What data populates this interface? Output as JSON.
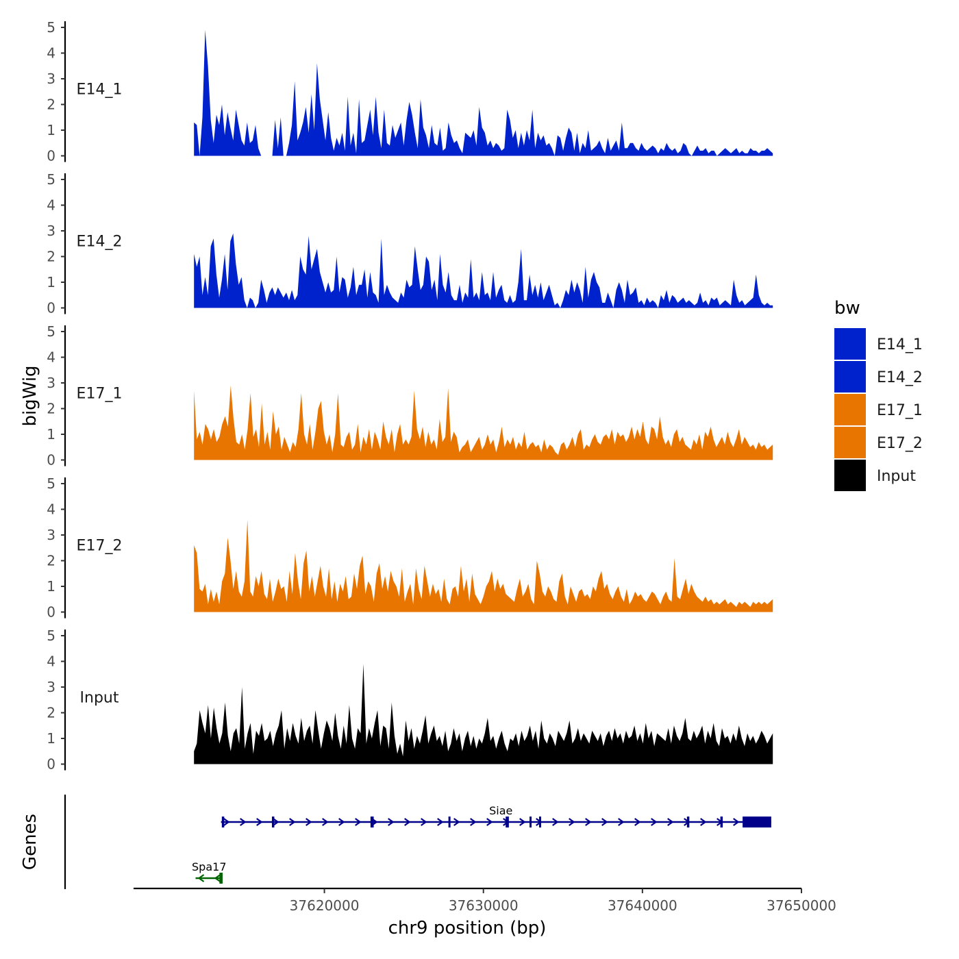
{
  "chart_data": {
    "type": "area",
    "ylabel": "bigWig",
    "xlabel": "chr9 position (bp)",
    "xlim": [
      37608000,
      37650000
    ],
    "x_ticks": [
      37620000,
      37630000,
      37640000,
      37650000
    ],
    "x_tick_labels": [
      "37620000",
      "37630000",
      "37640000",
      "37650000"
    ],
    "ylim": [
      0,
      5
    ],
    "y_ticks": [
      0,
      1,
      2,
      3,
      4,
      5
    ],
    "y_tick_labels": [
      "0",
      "1",
      "2",
      "3",
      "4",
      "5"
    ],
    "data_start": 37611800,
    "data_end": 37648200,
    "tracks": [
      {
        "name": "E14_1",
        "color": "#0022CC",
        "values": [
          1.3,
          1.2,
          0.0,
          1.5,
          4.9,
          3.5,
          1.4,
          0.5,
          1.6,
          1.2,
          2.0,
          0.8,
          1.7,
          1.1,
          0.6,
          1.8,
          1.2,
          0.6,
          0.4,
          1.3,
          0.5,
          0.6,
          1.2,
          0.3,
          0.0,
          0.0,
          0.0,
          0.0,
          0.0,
          1.4,
          0.3,
          1.5,
          0.0,
          0.0,
          0.5,
          1.2,
          2.9,
          0.6,
          0.9,
          1.3,
          1.9,
          0.9,
          2.4,
          1.0,
          3.6,
          2.2,
          1.4,
          0.6,
          1.7,
          0.7,
          0.2,
          0.7,
          0.4,
          0.9,
          0.2,
          2.3,
          0.4,
          0.9,
          0.1,
          2.2,
          0.5,
          0.6,
          1.2,
          1.8,
          0.8,
          2.3,
          0.9,
          0.3,
          1.8,
          0.5,
          0.4,
          1.2,
          0.7,
          1.0,
          1.3,
          0.4,
          1.4,
          2.1,
          1.6,
          0.9,
          0.3,
          2.2,
          1.1,
          0.8,
          0.3,
          1.2,
          0.5,
          0.4,
          1.1,
          0.2,
          0.3,
          1.3,
          0.8,
          0.5,
          0.6,
          0.3,
          0.1,
          0.9,
          0.8,
          0.7,
          1.0,
          0.4,
          1.9,
          1.1,
          0.9,
          0.4,
          0.6,
          0.3,
          0.5,
          0.4,
          0.2,
          0.3,
          1.8,
          1.4,
          0.7,
          1.0,
          0.3,
          0.9,
          0.4,
          1.0,
          0.6,
          1.8,
          0.3,
          0.9,
          0.6,
          0.8,
          0.4,
          0.5,
          0.3,
          0.0,
          0.8,
          0.7,
          0.2,
          0.7,
          1.1,
          0.9,
          0.2,
          0.9,
          0.1,
          0.5,
          0.3,
          1.0,
          0.2,
          0.3,
          0.4,
          0.6,
          0.3,
          0.1,
          0.7,
          0.2,
          0.4,
          0.6,
          0.2,
          1.3,
          0.3,
          0.3,
          0.5,
          0.5,
          0.3,
          0.2,
          0.5,
          0.3,
          0.2,
          0.3,
          0.4,
          0.3,
          0.1,
          0.3,
          0.2,
          0.5,
          0.3,
          0.2,
          0.3,
          0.1,
          0.2,
          0.5,
          0.4,
          0.1,
          0.0,
          0.2,
          0.4,
          0.2,
          0.2,
          0.3,
          0.1,
          0.2,
          0.2,
          0.0,
          0.1,
          0.2,
          0.3,
          0.2,
          0.1,
          0.2,
          0.3,
          0.1,
          0.2,
          0.1,
          0.1,
          0.3,
          0.2,
          0.2,
          0.1,
          0.2,
          0.2,
          0.3,
          0.2,
          0.1
        ]
      },
      {
        "name": "E14_2",
        "color": "#0022CC",
        "values": [
          2.1,
          1.6,
          2.0,
          0.5,
          1.2,
          0.5,
          2.4,
          2.7,
          1.3,
          0.4,
          1.1,
          2.1,
          0.7,
          2.6,
          2.9,
          1.7,
          0.9,
          1.2,
          0.3,
          0.0,
          0.4,
          0.3,
          0.0,
          0.2,
          1.1,
          0.7,
          0.2,
          0.6,
          0.8,
          0.5,
          0.8,
          0.6,
          0.4,
          0.6,
          0.3,
          0.7,
          0.3,
          0.5,
          2.0,
          1.5,
          1.3,
          2.8,
          1.5,
          1.9,
          2.3,
          1.4,
          1.0,
          0.6,
          1.0,
          0.6,
          0.7,
          2.0,
          0.6,
          1.2,
          1.1,
          0.4,
          0.8,
          1.6,
          0.5,
          0.9,
          0.9,
          1.5,
          0.4,
          1.4,
          0.6,
          0.5,
          0.2,
          2.7,
          0.5,
          0.9,
          0.6,
          0.4,
          0.3,
          0.2,
          0.6,
          0.4,
          1.1,
          0.8,
          0.9,
          2.4,
          1.5,
          0.7,
          0.9,
          2.0,
          1.8,
          0.7,
          1.1,
          0.3,
          2.1,
          0.9,
          0.6,
          1.4,
          0.5,
          0.3,
          0.3,
          0.9,
          0.2,
          0.6,
          0.4,
          1.9,
          0.4,
          0.6,
          0.3,
          1.4,
          0.5,
          0.6,
          0.3,
          1.4,
          0.4,
          0.7,
          0.9,
          0.3,
          0.2,
          0.5,
          0.2,
          0.3,
          1.0,
          2.3,
          0.3,
          0.3,
          1.3,
          0.5,
          0.9,
          0.4,
          1.0,
          0.3,
          0.6,
          0.9,
          0.5,
          0.1,
          0.2,
          0.0,
          0.3,
          0.7,
          0.5,
          1.1,
          0.6,
          1.0,
          0.7,
          0.2,
          1.6,
          0.4,
          1.1,
          1.4,
          1.0,
          0.8,
          0.2,
          0.2,
          0.6,
          0.3,
          0.0,
          0.7,
          1.0,
          0.7,
          0.2,
          1.1,
          0.5,
          0.6,
          0.8,
          0.2,
          0.3,
          0.1,
          0.4,
          0.2,
          0.3,
          0.2,
          0.0,
          0.5,
          0.3,
          0.7,
          0.2,
          0.5,
          0.4,
          0.2,
          0.3,
          0.4,
          0.2,
          0.3,
          0.2,
          0.1,
          0.2,
          0.6,
          0.2,
          0.3,
          0.1,
          0.4,
          0.3,
          0.4,
          0.1,
          0.2,
          0.3,
          0.2,
          0.1,
          1.1,
          0.5,
          0.2,
          0.3,
          0.1,
          0.2,
          0.3,
          0.4,
          1.3,
          0.5,
          0.2,
          0.1,
          0.2,
          0.1,
          0.1
        ]
      },
      {
        "name": "E17_1",
        "color": "#E87500",
        "values": [
          2.7,
          0.8,
          1.1,
          0.6,
          1.4,
          1.2,
          0.8,
          1.2,
          0.7,
          0.9,
          1.4,
          1.7,
          1.3,
          2.9,
          1.6,
          0.7,
          0.6,
          1.0,
          0.4,
          1.2,
          2.6,
          0.9,
          1.2,
          0.5,
          2.2,
          0.6,
          1.1,
          0.4,
          1.9,
          1.0,
          1.3,
          0.4,
          0.9,
          0.6,
          0.3,
          0.7,
          0.5,
          1.2,
          2.6,
          1.0,
          0.6,
          1.4,
          0.4,
          1.1,
          2.0,
          2.3,
          1.1,
          0.6,
          1.0,
          0.3,
          1.0,
          2.6,
          0.6,
          0.5,
          0.9,
          1.1,
          0.4,
          0.6,
          1.4,
          0.3,
          0.9,
          0.6,
          1.2,
          0.4,
          1.1,
          0.8,
          0.4,
          1.5,
          0.9,
          0.6,
          1.2,
          0.3,
          1.0,
          1.4,
          0.6,
          0.8,
          0.6,
          0.9,
          2.7,
          1.2,
          0.8,
          1.3,
          0.5,
          1.1,
          0.6,
          0.8,
          0.4,
          1.6,
          0.7,
          0.9,
          2.8,
          0.7,
          1.1,
          0.9,
          0.3,
          0.5,
          0.6,
          0.8,
          0.3,
          0.5,
          0.7,
          0.9,
          0.4,
          0.6,
          1.0,
          0.6,
          0.8,
          0.3,
          0.7,
          1.3,
          0.5,
          0.8,
          0.6,
          0.9,
          0.4,
          0.7,
          0.5,
          1.1,
          0.4,
          0.6,
          0.7,
          0.5,
          0.6,
          0.3,
          0.8,
          0.4,
          0.6,
          0.5,
          0.3,
          0.2,
          0.6,
          0.7,
          0.4,
          0.6,
          0.9,
          0.5,
          1.0,
          1.2,
          0.4,
          0.6,
          0.5,
          0.8,
          1.0,
          0.7,
          0.6,
          0.9,
          1.0,
          0.8,
          1.2,
          0.6,
          1.1,
          0.9,
          1.0,
          0.7,
          0.9,
          1.3,
          0.8,
          1.2,
          0.9,
          1.5,
          0.8,
          0.6,
          1.3,
          1.2,
          0.8,
          1.7,
          0.9,
          0.6,
          0.8,
          0.5,
          1.0,
          1.2,
          0.7,
          0.9,
          0.6,
          0.5,
          0.4,
          0.8,
          0.6,
          1.0,
          0.4,
          1.1,
          0.9,
          1.3,
          0.8,
          0.5,
          0.7,
          0.9,
          0.6,
          1.1,
          0.7,
          0.5,
          0.8,
          1.2,
          0.6,
          0.9,
          0.7,
          0.5,
          0.6,
          0.4,
          0.7,
          0.5,
          0.6,
          0.4,
          0.5,
          0.6
        ]
      },
      {
        "name": "E17_2",
        "color": "#E87500",
        "values": [
          2.6,
          2.3,
          0.9,
          0.8,
          1.1,
          0.3,
          0.9,
          0.4,
          0.8,
          0.3,
          1.2,
          1.5,
          2.9,
          2.0,
          0.9,
          1.6,
          0.8,
          0.6,
          1.2,
          3.6,
          0.8,
          0.6,
          1.4,
          1.0,
          1.6,
          0.7,
          0.5,
          1.3,
          0.4,
          0.8,
          1.3,
          0.9,
          1.0,
          0.4,
          1.6,
          0.7,
          2.3,
          1.2,
          0.5,
          1.9,
          2.4,
          0.8,
          1.4,
          0.6,
          1.2,
          1.8,
          1.0,
          0.6,
          1.7,
          0.5,
          1.2,
          0.4,
          1.1,
          0.8,
          1.4,
          0.5,
          0.6,
          1.5,
          0.9,
          1.8,
          2.2,
          0.7,
          1.2,
          1.0,
          0.4,
          1.5,
          1.9,
          0.9,
          1.4,
          0.8,
          1.6,
          1.2,
          1.0,
          0.6,
          1.7,
          0.4,
          0.8,
          1.1,
          0.3,
          1.7,
          0.9,
          0.5,
          1.8,
          1.2,
          0.6,
          1.1,
          0.7,
          0.9,
          0.4,
          1.3,
          0.5,
          0.3,
          0.9,
          1.0,
          0.6,
          1.8,
          0.8,
          1.3,
          0.4,
          1.5,
          0.7,
          0.5,
          0.3,
          0.6,
          1.0,
          1.2,
          1.6,
          0.8,
          1.3,
          0.9,
          1.1,
          0.7,
          0.6,
          0.5,
          0.4,
          0.9,
          1.3,
          0.6,
          0.8,
          1.1,
          0.5,
          0.3,
          2.0,
          1.5,
          0.8,
          0.6,
          1.0,
          0.8,
          0.5,
          0.4,
          1.2,
          1.5,
          0.6,
          0.3,
          1.0,
          0.7,
          0.4,
          0.8,
          0.9,
          0.6,
          0.7,
          0.5,
          1.0,
          0.8,
          1.3,
          1.6,
          0.9,
          1.1,
          0.7,
          0.5,
          0.8,
          1.0,
          0.6,
          0.4,
          0.9,
          0.3,
          0.5,
          0.8,
          0.6,
          0.7,
          0.5,
          0.4,
          0.6,
          0.8,
          0.7,
          0.5,
          0.3,
          0.6,
          0.8,
          0.5,
          0.4,
          2.1,
          0.6,
          0.5,
          0.9,
          1.3,
          0.7,
          1.1,
          0.8,
          0.6,
          0.5,
          0.4,
          0.6,
          0.4,
          0.5,
          0.3,
          0.4,
          0.3,
          0.4,
          0.5,
          0.3,
          0.4,
          0.3,
          0.2,
          0.4,
          0.3,
          0.4,
          0.3,
          0.2,
          0.4,
          0.3,
          0.4,
          0.3,
          0.4,
          0.3,
          0.4,
          0.5
        ]
      },
      {
        "name": "Input",
        "color": "#000000",
        "values": [
          0.5,
          0.8,
          2.1,
          1.6,
          1.2,
          2.3,
          1.0,
          2.2,
          1.4,
          0.8,
          1.2,
          2.4,
          1.1,
          0.5,
          1.2,
          1.4,
          0.8,
          3.0,
          0.6,
          1.2,
          1.6,
          0.4,
          1.3,
          1.1,
          1.6,
          0.9,
          1.0,
          1.3,
          0.7,
          1.2,
          1.5,
          2.1,
          0.6,
          1.4,
          0.9,
          1.6,
          1.1,
          0.8,
          1.8,
          0.9,
          1.3,
          1.5,
          0.8,
          2.1,
          1.3,
          0.6,
          1.2,
          1.7,
          1.4,
          0.9,
          2.0,
          1.1,
          0.6,
          1.5,
          0.8,
          2.3,
          1.0,
          0.6,
          1.4,
          1.2,
          3.9,
          0.8,
          1.4,
          1.0,
          1.6,
          2.1,
          0.7,
          1.5,
          1.4,
          0.6,
          2.4,
          1.1,
          0.4,
          0.8,
          0.3,
          1.7,
          0.9,
          1.4,
          0.6,
          1.1,
          0.8,
          1.3,
          1.9,
          0.8,
          1.2,
          1.5,
          0.9,
          1.1,
          0.7,
          1.3,
          0.5,
          0.8,
          1.4,
          0.9,
          1.2,
          0.5,
          1.0,
          1.3,
          0.7,
          1.1,
          0.6,
          1.0,
          0.8,
          1.2,
          1.8,
          0.9,
          1.1,
          0.6,
          1.0,
          1.3,
          0.8,
          0.5,
          1.0,
          0.9,
          1.2,
          0.7,
          1.3,
          0.9,
          1.1,
          1.5,
          0.9,
          1.3,
          0.6,
          1.7,
          1.0,
          0.8,
          1.2,
          1.0,
          0.7,
          1.3,
          1.1,
          0.9,
          1.2,
          1.7,
          0.8,
          1.0,
          1.4,
          0.9,
          1.2,
          1.0,
          0.8,
          1.3,
          1.1,
          0.9,
          1.2,
          0.7,
          1.1,
          1.3,
          0.9,
          1.4,
          1.0,
          1.2,
          0.8,
          1.3,
          1.0,
          1.1,
          1.5,
          0.9,
          1.2,
          0.8,
          1.6,
          1.0,
          1.3,
          0.7,
          1.2,
          1.1,
          1.0,
          0.9,
          1.4,
          0.8,
          1.5,
          1.1,
          0.9,
          1.2,
          1.8,
          1.0,
          0.9,
          1.3,
          1.0,
          1.2,
          1.5,
          0.8,
          1.3,
          1.0,
          1.6,
          0.9,
          0.7,
          1.4,
          1.0,
          1.1,
          0.8,
          1.2,
          0.9,
          1.5,
          1.0,
          0.7,
          1.2,
          0.9,
          1.1,
          0.8,
          1.0,
          1.3,
          1.1,
          0.8,
          1.0,
          1.2
        ]
      }
    ],
    "genes_track": {
      "label": "Genes",
      "genes": [
        {
          "name": "Siae",
          "start": 37613500,
          "end": 37648100,
          "strand": "+",
          "color": "#00008B",
          "exons": [
            [
              37613550,
              37613700
            ],
            [
              37616700,
              37616850
            ],
            [
              37622900,
              37623100
            ],
            [
              37627800,
              37627900
            ],
            [
              37631400,
              37631600
            ],
            [
              37632900,
              37632980
            ],
            [
              37633500,
              37633600
            ],
            [
              37642800,
              37642950
            ],
            [
              37644900,
              37645050
            ],
            [
              37646300,
              37648100
            ]
          ]
        },
        {
          "name": "Spa17",
          "start": 37611900,
          "end": 37613600,
          "strand": "-",
          "color": "#006400",
          "exons": [
            [
              37613400,
              37613600
            ]
          ]
        }
      ]
    },
    "legend": {
      "title": "bw",
      "entries": [
        {
          "label": "E14_1",
          "color": "#0022CC"
        },
        {
          "label": "E14_2",
          "color": "#0022CC"
        },
        {
          "label": "E17_1",
          "color": "#E87500"
        },
        {
          "label": "E17_2",
          "color": "#E87500"
        },
        {
          "label": "Input",
          "color": "#000000"
        }
      ],
      "position": "right"
    }
  }
}
